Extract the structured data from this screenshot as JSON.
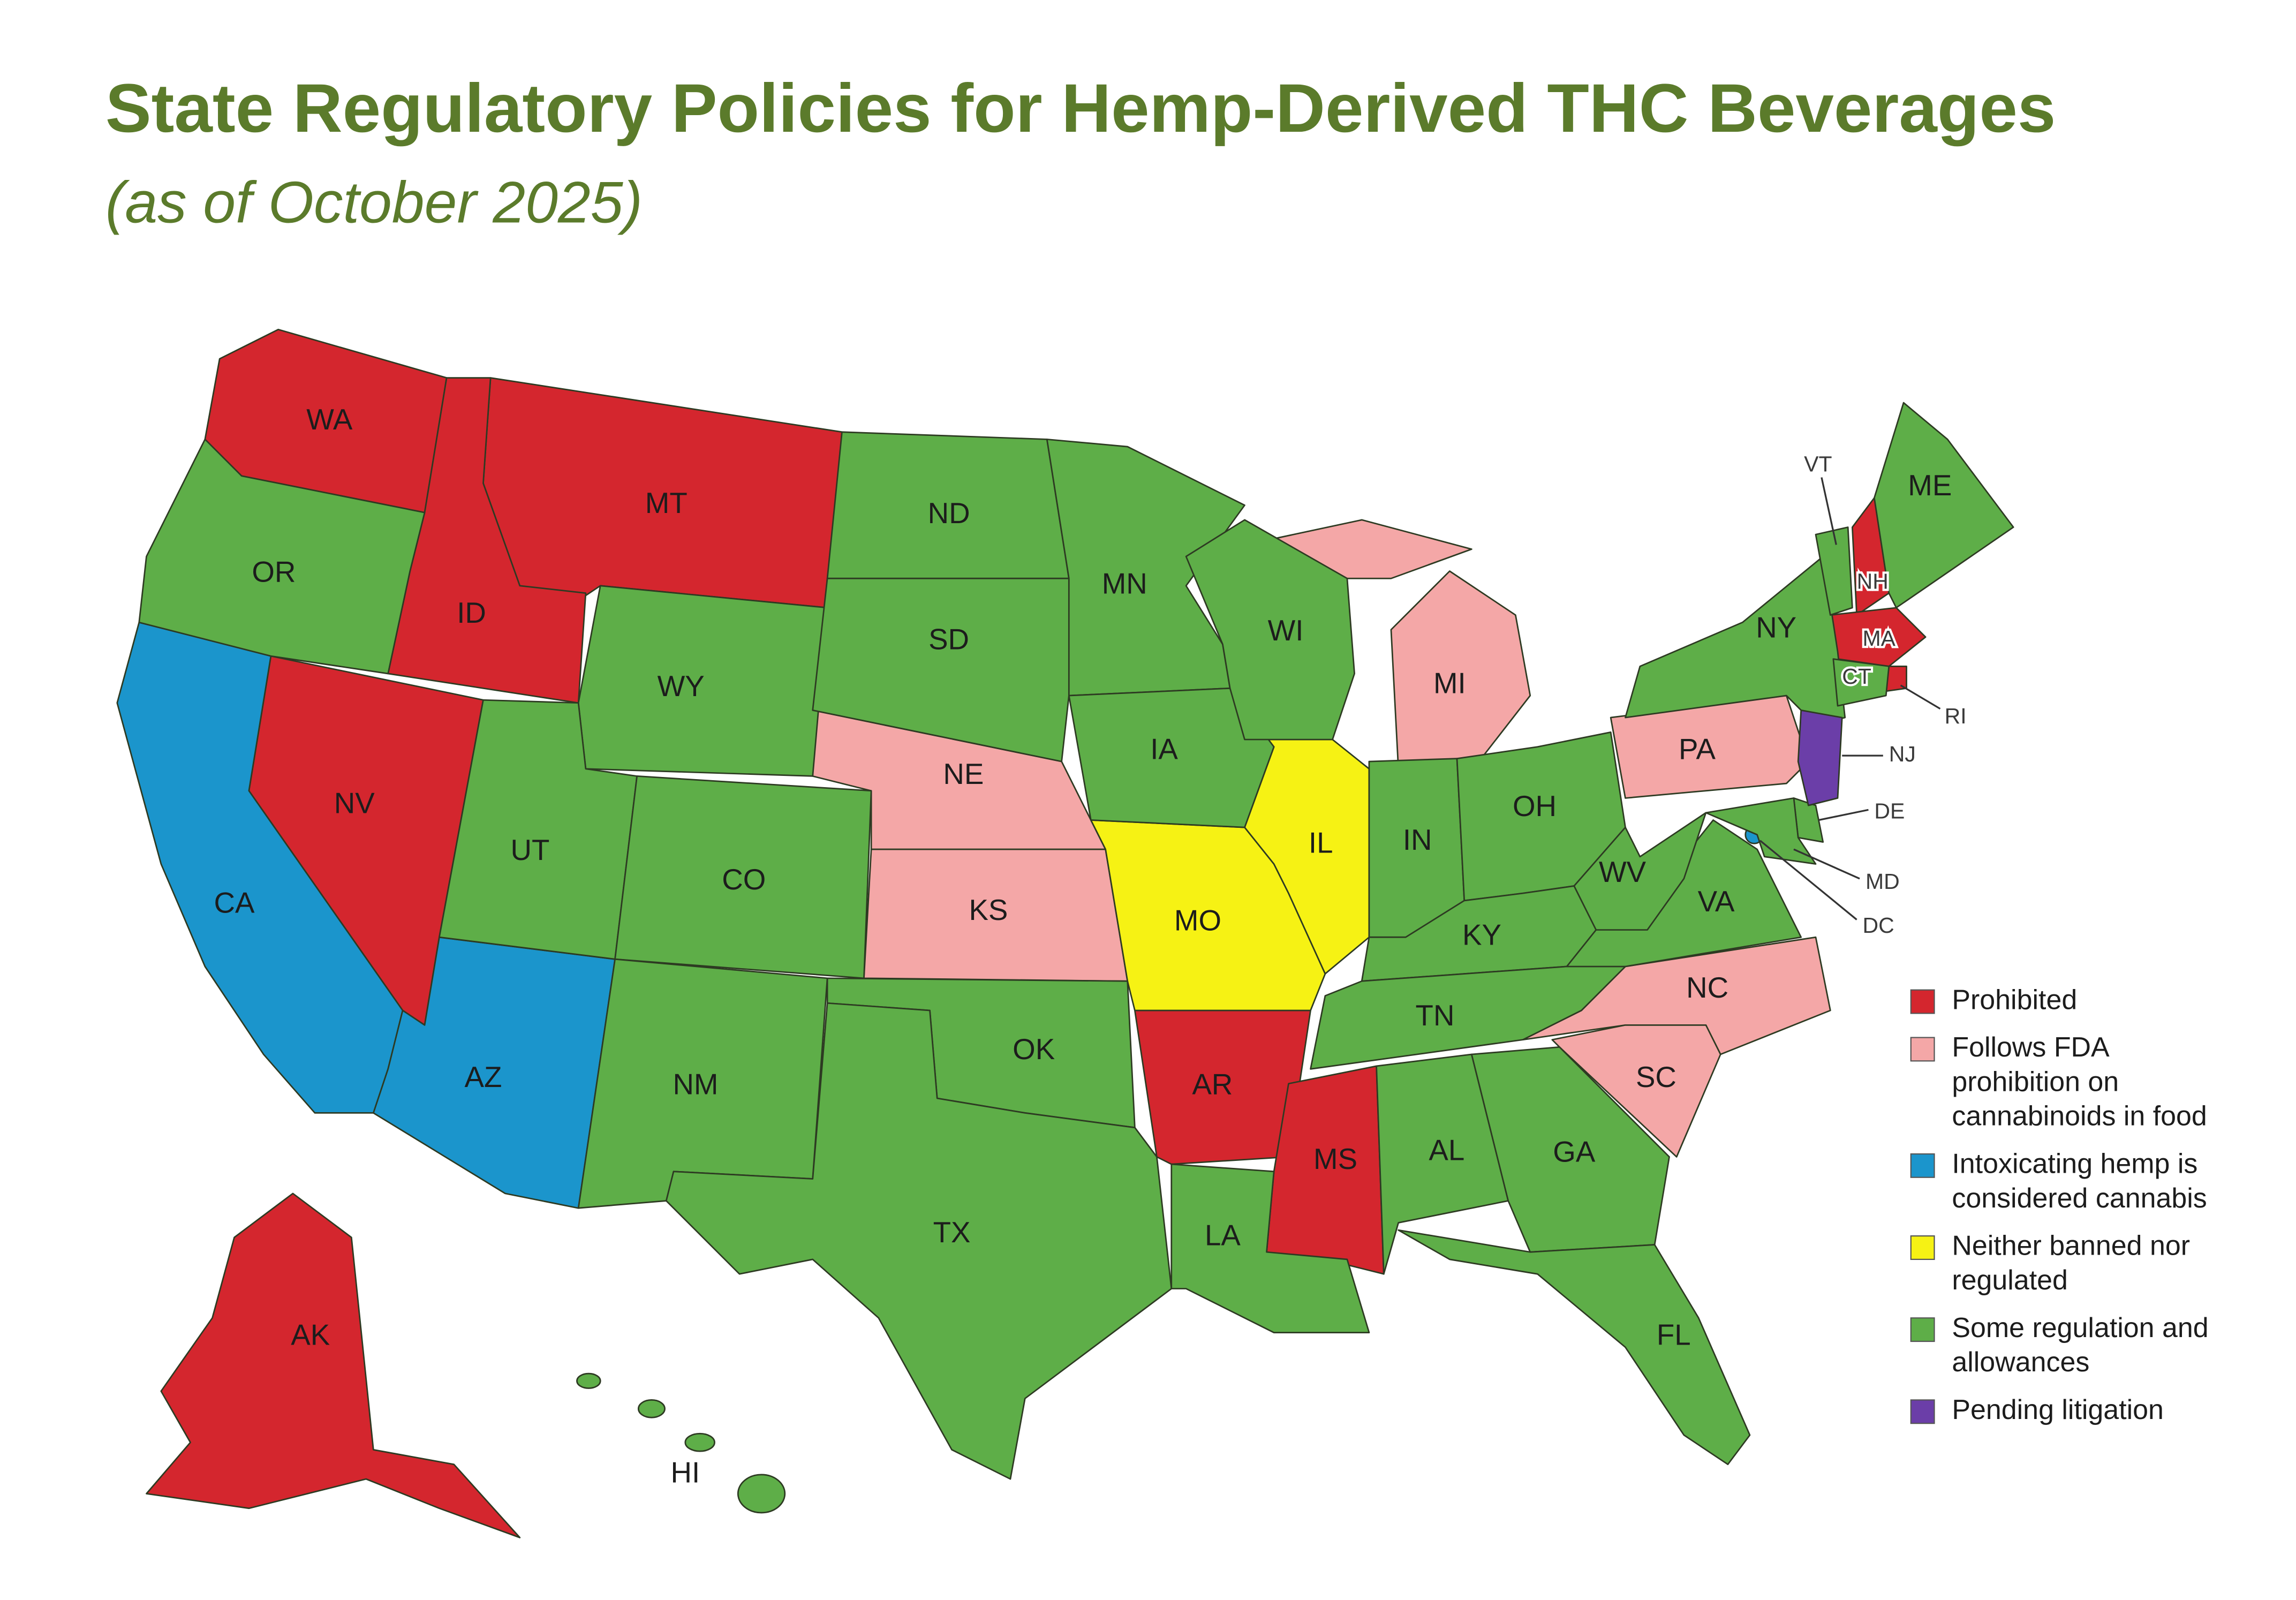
{
  "header": {
    "title": "State Regulatory Policies for Hemp-Derived THC Beverages",
    "subtitle": "(as of October 2025)"
  },
  "legend": [
    {
      "label": [
        "Prohibited"
      ],
      "color": "#d4262e",
      "states": [
        "WA",
        "MT",
        "ID",
        "NV",
        "AR",
        "MS",
        "NH",
        "MA",
        "RI",
        "AK"
      ]
    },
    {
      "label": [
        "Follows FDA",
        "prohibition on",
        "cannabinoids in food"
      ],
      "color": "#f4a7a7",
      "states": [
        "NE",
        "KS",
        "MI",
        "PA",
        "NC",
        "SC"
      ]
    },
    {
      "label": [
        "Intoxicating hemp is",
        "considered cannabis"
      ],
      "color": "#1b95cc",
      "states": [
        "CA",
        "AZ",
        "DC"
      ]
    },
    {
      "label": [
        "Neither banned nor",
        "regulated"
      ],
      "color": "#f6f214",
      "states": [
        "MO",
        "IL"
      ]
    },
    {
      "label": [
        "Some regulation and",
        "allowances"
      ],
      "color": "#5eae48",
      "states": [
        "OR",
        "WY",
        "UT",
        "CO",
        "NM",
        "ND",
        "SD",
        "OK",
        "TX",
        "MN",
        "IA",
        "LA",
        "WI",
        "IN",
        "OH",
        "KY",
        "TN",
        "AL",
        "GA",
        "FL",
        "VA",
        "WV",
        "NY",
        "VT",
        "ME",
        "CT",
        "DE",
        "MD",
        "HI"
      ]
    },
    {
      "label": [
        "Pending litigation"
      ],
      "color": "#6b3ea8",
      "states": [
        "NJ"
      ]
    }
  ]
}
